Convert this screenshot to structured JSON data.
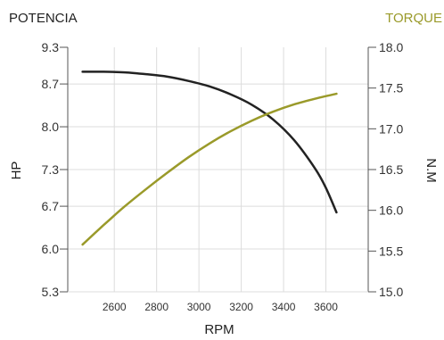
{
  "chart_data": {
    "type": "line",
    "left_title": "POTENCIA",
    "right_title": "TORQUE",
    "xlabel": "RPM",
    "ylabel_left": "HP",
    "ylabel_right": "N.M",
    "xlim": [
      2380,
      3800
    ],
    "ylim_left": [
      5.3,
      9.3
    ],
    "ylim_right": [
      15.0,
      18.0
    ],
    "x_ticks": [
      "2600",
      "2800",
      "3000",
      "3200",
      "3400",
      "3600"
    ],
    "y_left_ticks": [
      "9.3",
      "8.7",
      "8.0",
      "7.3",
      "6.7",
      "6.0",
      "5.3"
    ],
    "y_right_ticks": [
      "18.0",
      "17.5",
      "17.0",
      "16.5",
      "16.0",
      "15.5",
      "15.0"
    ],
    "grid": true,
    "colors": {
      "power": "#222222",
      "torque": "#9a9a2a",
      "axis": "#555555",
      "grid": "#dcdcdc",
      "right_title": "#9a9a2a"
    },
    "series": [
      {
        "axis": "left",
        "x": [
          2450,
          2550,
          2650,
          2750,
          2850,
          2950,
          3050,
          3150,
          3250,
          3350,
          3450,
          3550,
          3600,
          3650
        ],
        "values": [
          8.9,
          8.9,
          8.89,
          8.86,
          8.82,
          8.75,
          8.66,
          8.53,
          8.36,
          8.12,
          7.78,
          7.31,
          7.0,
          6.6
        ]
      },
      {
        "axis": "right",
        "x": [
          2450,
          2550,
          2650,
          2750,
          2850,
          2950,
          3050,
          3150,
          3250,
          3350,
          3450,
          3550,
          3650
        ],
        "values": [
          15.58,
          15.82,
          16.05,
          16.26,
          16.46,
          16.65,
          16.82,
          16.97,
          17.1,
          17.21,
          17.3,
          17.37,
          17.43
        ]
      }
    ]
  }
}
